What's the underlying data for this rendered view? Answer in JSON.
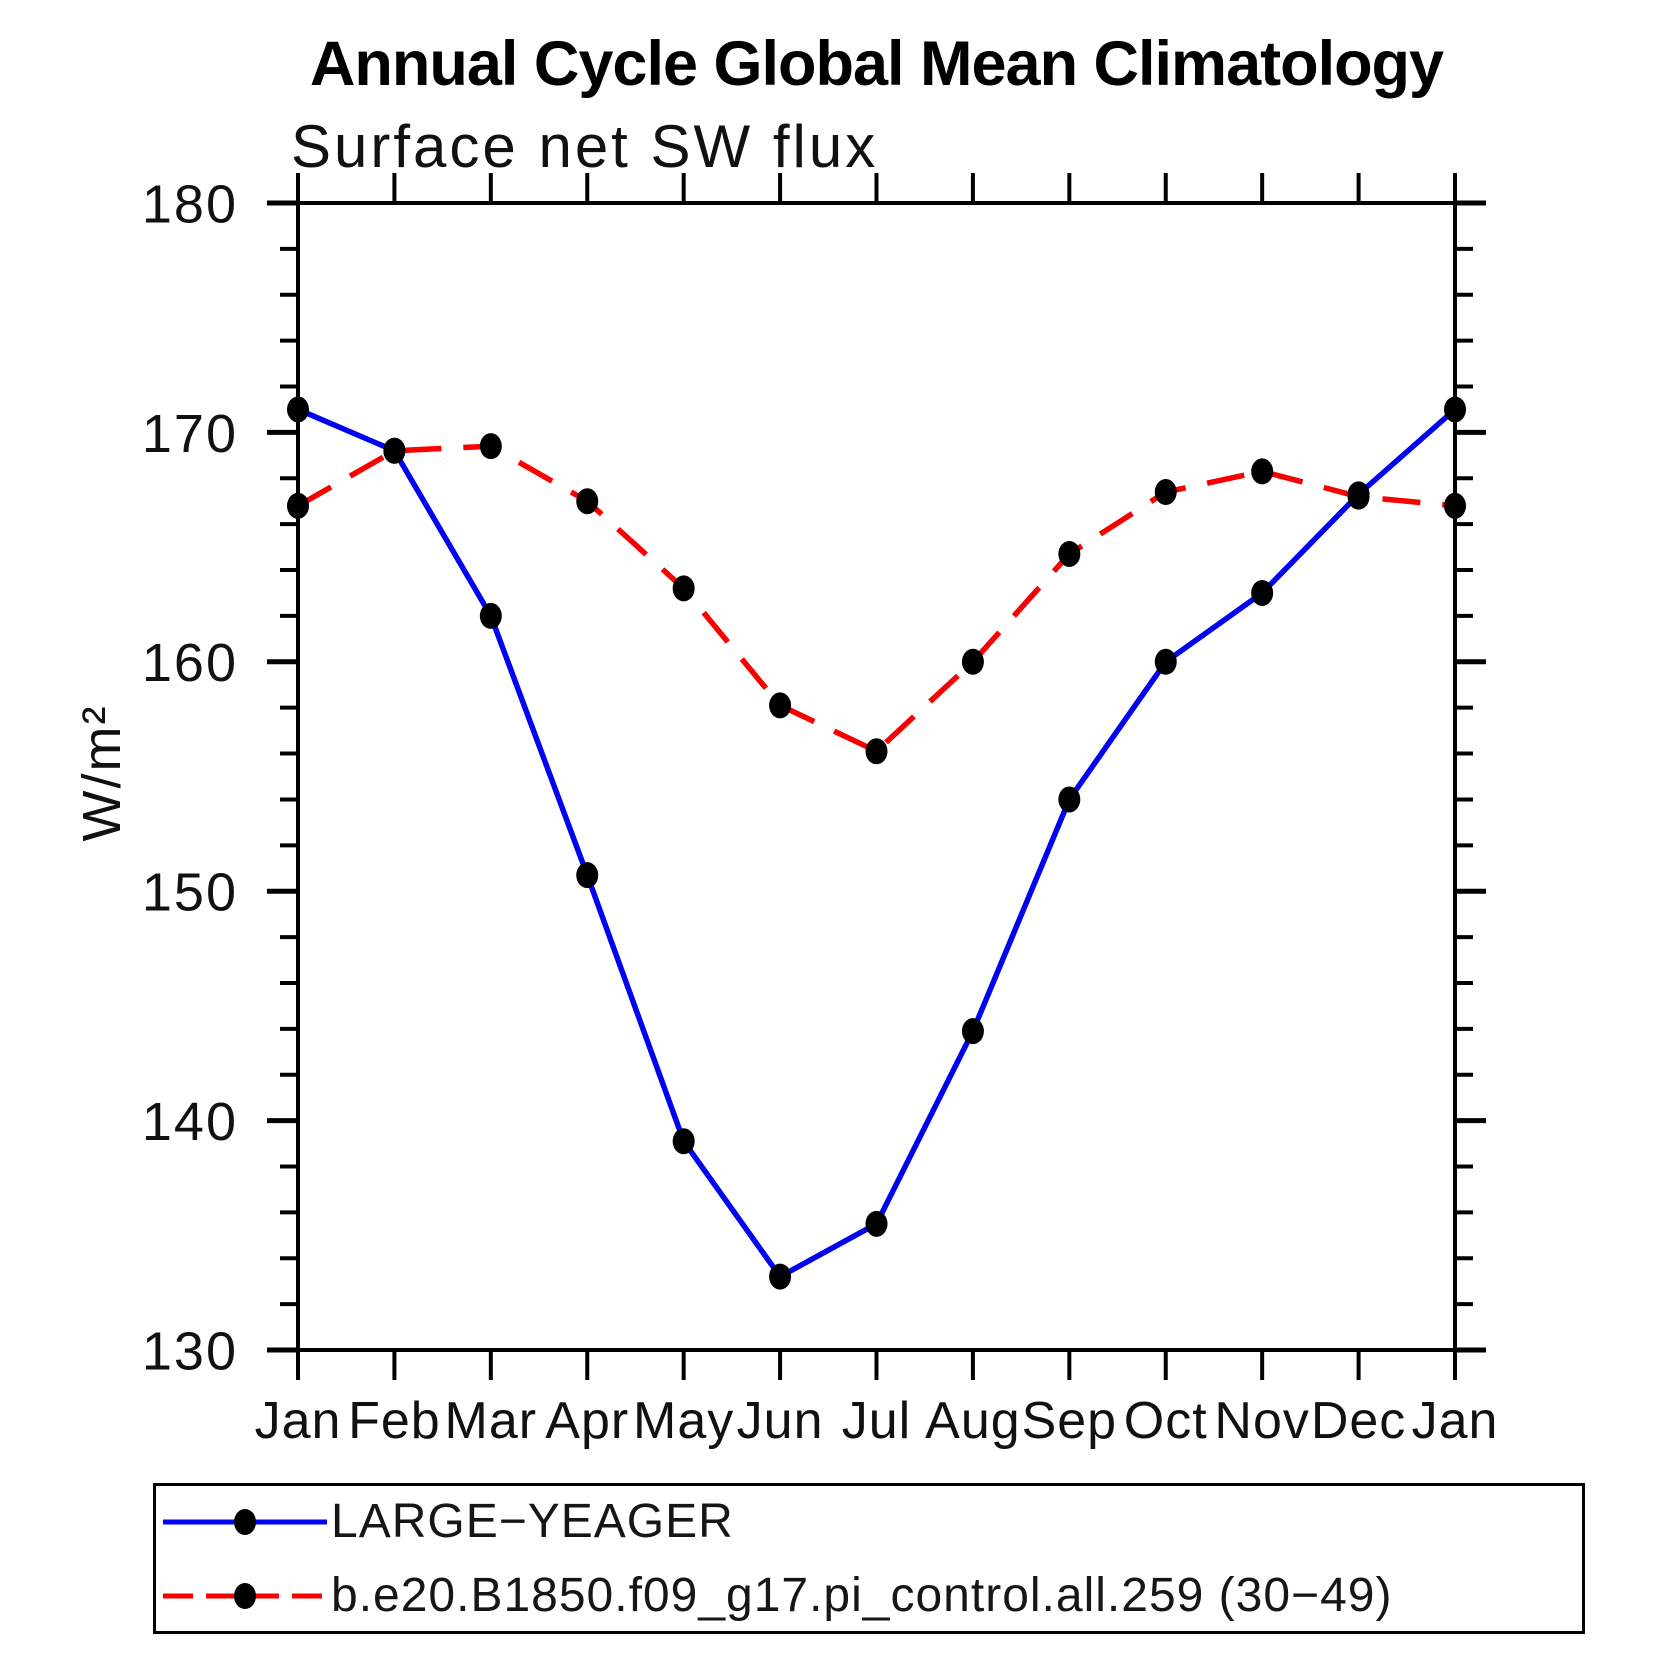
{
  "title": "Annual Cycle Global Mean Climatology",
  "subtitle": "Surface net SW flux",
  "ylabel": "W/m²",
  "axis_color": "#000000",
  "marker_color": "#000000",
  "legend": {
    "items": [
      {
        "label": "LARGE−YEAGER",
        "color": "#0202f2",
        "style": "solid"
      },
      {
        "label": "b.e20.B1850.f09_g17.pi_control.all.259 (30−49)",
        "color": "#f80000",
        "style": "dashed"
      }
    ]
  },
  "chart_data": {
    "type": "line",
    "title": "Annual Cycle Global Mean Climatology",
    "subtitle": "Surface net SW flux",
    "xlabel": "",
    "ylabel": "W/m²",
    "categories": [
      "Jan",
      "Feb",
      "Mar",
      "Apr",
      "May",
      "Jun",
      "Jul",
      "Aug",
      "Sep",
      "Oct",
      "Nov",
      "Dec",
      "Jan"
    ],
    "series": [
      {
        "name": "LARGE−YEAGER",
        "color": "#0202f2",
        "line_style": "solid",
        "marker": "filled-circle",
        "values": [
          171.0,
          169.2,
          162.0,
          150.7,
          139.1,
          133.2,
          135.5,
          143.9,
          154.0,
          160.0,
          163.0,
          167.3,
          171.0
        ]
      },
      {
        "name": "b.e20.B1850.f09_g17.pi_control.all.259 (30−49)",
        "color": "#f80000",
        "line_style": "dashed",
        "marker": "filled-circle",
        "values": [
          166.8,
          169.2,
          169.4,
          167.0,
          163.2,
          158.1,
          156.1,
          160.0,
          164.7,
          167.4,
          168.3,
          167.2,
          166.8
        ]
      }
    ],
    "ylim": [
      130,
      180
    ],
    "y_major_ticks": [
      130,
      140,
      150,
      160,
      170,
      180
    ],
    "y_minor_step": 2,
    "grid": false,
    "legend_position": "bottom"
  }
}
